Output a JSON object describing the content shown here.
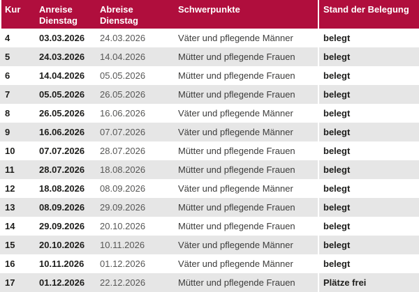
{
  "colors": {
    "header_bg": "#b00e3d",
    "header_text": "#ffffff",
    "stripe": "#e6e6e6",
    "text": "#3c3c3b",
    "text_bold": "#1d1d1b",
    "text_muted": "#575756"
  },
  "header": {
    "kur": "Kur",
    "anreise": "Anreise",
    "anreise_sub": "Dienstag",
    "abreise": "Abreise",
    "abreise_sub": "Dienstag",
    "schwerpunkt": "Schwerpunkte",
    "stand": "Stand der Belegung"
  },
  "rows": [
    {
      "kur": "4",
      "anreise": "03.03.2026",
      "abreise": "24.03.2026",
      "schwerpunkt": "Väter und pflegende Männer",
      "stand": "belegt"
    },
    {
      "kur": "5",
      "anreise": "24.03.2026",
      "abreise": "14.04.2026",
      "schwerpunkt": "Mütter und pflegende Frauen",
      "stand": "belegt"
    },
    {
      "kur": "6",
      "anreise": "14.04.2026",
      "abreise": "05.05.2026",
      "schwerpunkt": "Mütter und pflegende Frauen",
      "stand": "belegt"
    },
    {
      "kur": "7",
      "anreise": "05.05.2026",
      "abreise": "26.05.2026",
      "schwerpunkt": "Mütter und pflegende Frauen",
      "stand": "belegt"
    },
    {
      "kur": "8",
      "anreise": "26.05.2026",
      "abreise": "16.06.2026",
      "schwerpunkt": "Väter und pflegende Männer",
      "stand": "belegt"
    },
    {
      "kur": "9",
      "anreise": "16.06.2026",
      "abreise": "07.07.2026",
      "schwerpunkt": "Väter und pflegende Männer",
      "stand": "belegt"
    },
    {
      "kur": "10",
      "anreise": "07.07.2026",
      "abreise": "28.07.2026",
      "schwerpunkt": "Mütter und pflegende Frauen",
      "stand": "belegt"
    },
    {
      "kur": "11",
      "anreise": "28.07.2026",
      "abreise": "18.08.2026",
      "schwerpunkt": "Mütter und pflegende Frauen",
      "stand": "belegt"
    },
    {
      "kur": "12",
      "anreise": "18.08.2026",
      "abreise": "08.09.2026",
      "schwerpunkt": "Väter und pflegende Männer",
      "stand": "belegt"
    },
    {
      "kur": "13",
      "anreise": "08.09.2026",
      "abreise": "29.09.2026",
      "schwerpunkt": "Mütter und pflegende Frauen",
      "stand": "belegt"
    },
    {
      "kur": "14",
      "anreise": "29.09.2026",
      "abreise": "20.10.2026",
      "schwerpunkt": "Mütter und pflegende Frauen",
      "stand": "belegt"
    },
    {
      "kur": "15",
      "anreise": "20.10.2026",
      "abreise": "10.11.2026",
      "schwerpunkt": "Väter und pflegende Männer",
      "stand": "belegt"
    },
    {
      "kur": "16",
      "anreise": "10.11.2026",
      "abreise": "01.12.2026",
      "schwerpunkt": "Väter und pflegende Männer",
      "stand": "belegt"
    },
    {
      "kur": "17",
      "anreise": "01.12.2026",
      "abreise": "22.12.2026",
      "schwerpunkt": "Mütter und pflegende Frauen",
      "stand": "Plätze frei"
    }
  ]
}
